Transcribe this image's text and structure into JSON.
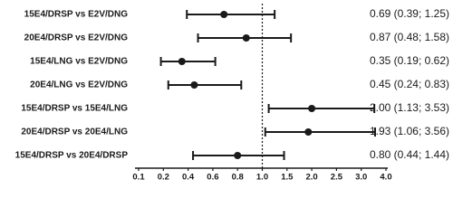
{
  "chart_data": {
    "type": "forest",
    "categories": [
      "15E4/DRSP vs E2V/DNG",
      "20E4/DRSP vs E2V/DNG",
      "15E4/LNG vs E2V/DNG",
      "20E4/LNG vs E2V/DNG",
      "15E4/DRSP vs 15E4/LNG",
      "20E4/DRSP vs 20E4/LNG",
      "15E4/DRSP vs 20E4/DRSP"
    ],
    "values": [
      0.69,
      0.87,
      0.35,
      0.45,
      2.0,
      1.93,
      0.8
    ],
    "lower": [
      0.39,
      0.48,
      0.19,
      0.24,
      1.13,
      1.06,
      0.44
    ],
    "upper": [
      1.25,
      1.58,
      0.62,
      0.83,
      3.53,
      3.56,
      1.44
    ],
    "value_labels": [
      "0.69 (0.39; 1.25)",
      "0.87 (0.48; 1.58)",
      "0.35 (0.19; 0.62)",
      "0.45 (0.24; 0.83)",
      "2.00 (1.13; 3.53)",
      "1.93 (1.06; 3.56)",
      "0.80 (0.44; 1.44)"
    ],
    "color": "#1a1a1a",
    "reference": 1,
    "xlim": [
      0.1,
      4
    ],
    "xticks": [
      0.1,
      0.2,
      0.4,
      0.6,
      0.8,
      {
        "value": 1,
        "label": "1.0"
      },
      1.5,
      {
        "value": 2,
        "label": "2.0"
      },
      2.5,
      {
        "value": 3,
        "label": "3.0"
      },
      {
        "value": 4,
        "label": "4.0"
      }
    ]
  }
}
